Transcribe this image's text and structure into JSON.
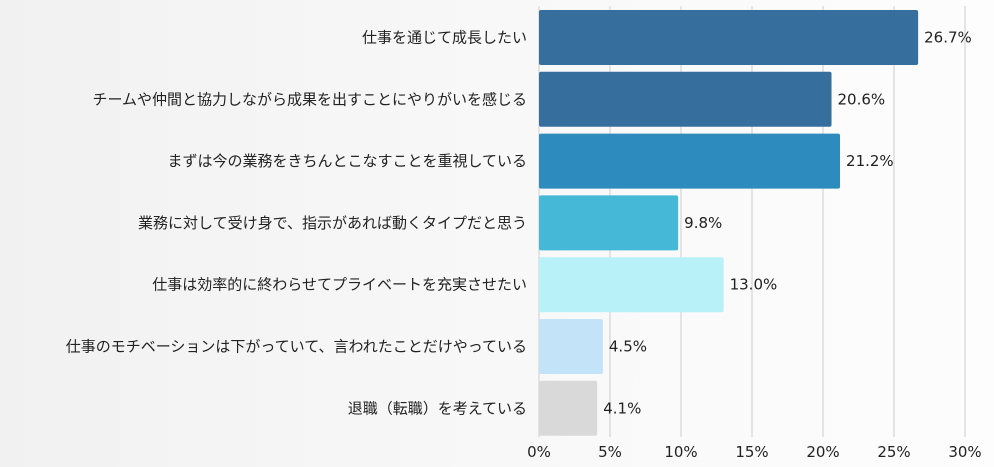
{
  "chart_data": {
    "type": "bar",
    "orientation": "horizontal",
    "title": "",
    "xlabel": "",
    "ylabel": "",
    "categories": [
      "仕事を通じて成長したい",
      "チームや仲間と協力しながら成果を出すことにやりがいを感じる",
      "まずは今の業務をきちんとこなすことを重視している",
      "業務に対して受け身で、指示があれば動くタイプだと思う",
      "仕事は効率的に終わらせてプライベートを充実させたい",
      "仕事のモチベーションは下がっていて、言われたことだけやっている",
      "退職（転職）を考えている"
    ],
    "values": [
      26.7,
      20.6,
      21.2,
      9.8,
      13.0,
      4.5,
      4.1
    ],
    "value_labels": [
      "26.7%",
      "20.6%",
      "21.2%",
      "9.8%",
      "13.0%",
      "4.5%",
      "4.1%"
    ],
    "colors": [
      "#366f9e",
      "#366f9e",
      "#2d8cbd",
      "#45b8d8",
      "#b8f1f7",
      "#c3e3f8",
      "#d9d9d9"
    ],
    "xlim": [
      0,
      30
    ],
    "xticks": [
      0,
      5,
      10,
      15,
      20,
      25,
      30
    ],
    "xtick_labels": [
      "0%",
      "5%",
      "10%",
      "15%",
      "20%",
      "25%",
      "30%"
    ],
    "grid": true,
    "legend": "none"
  }
}
